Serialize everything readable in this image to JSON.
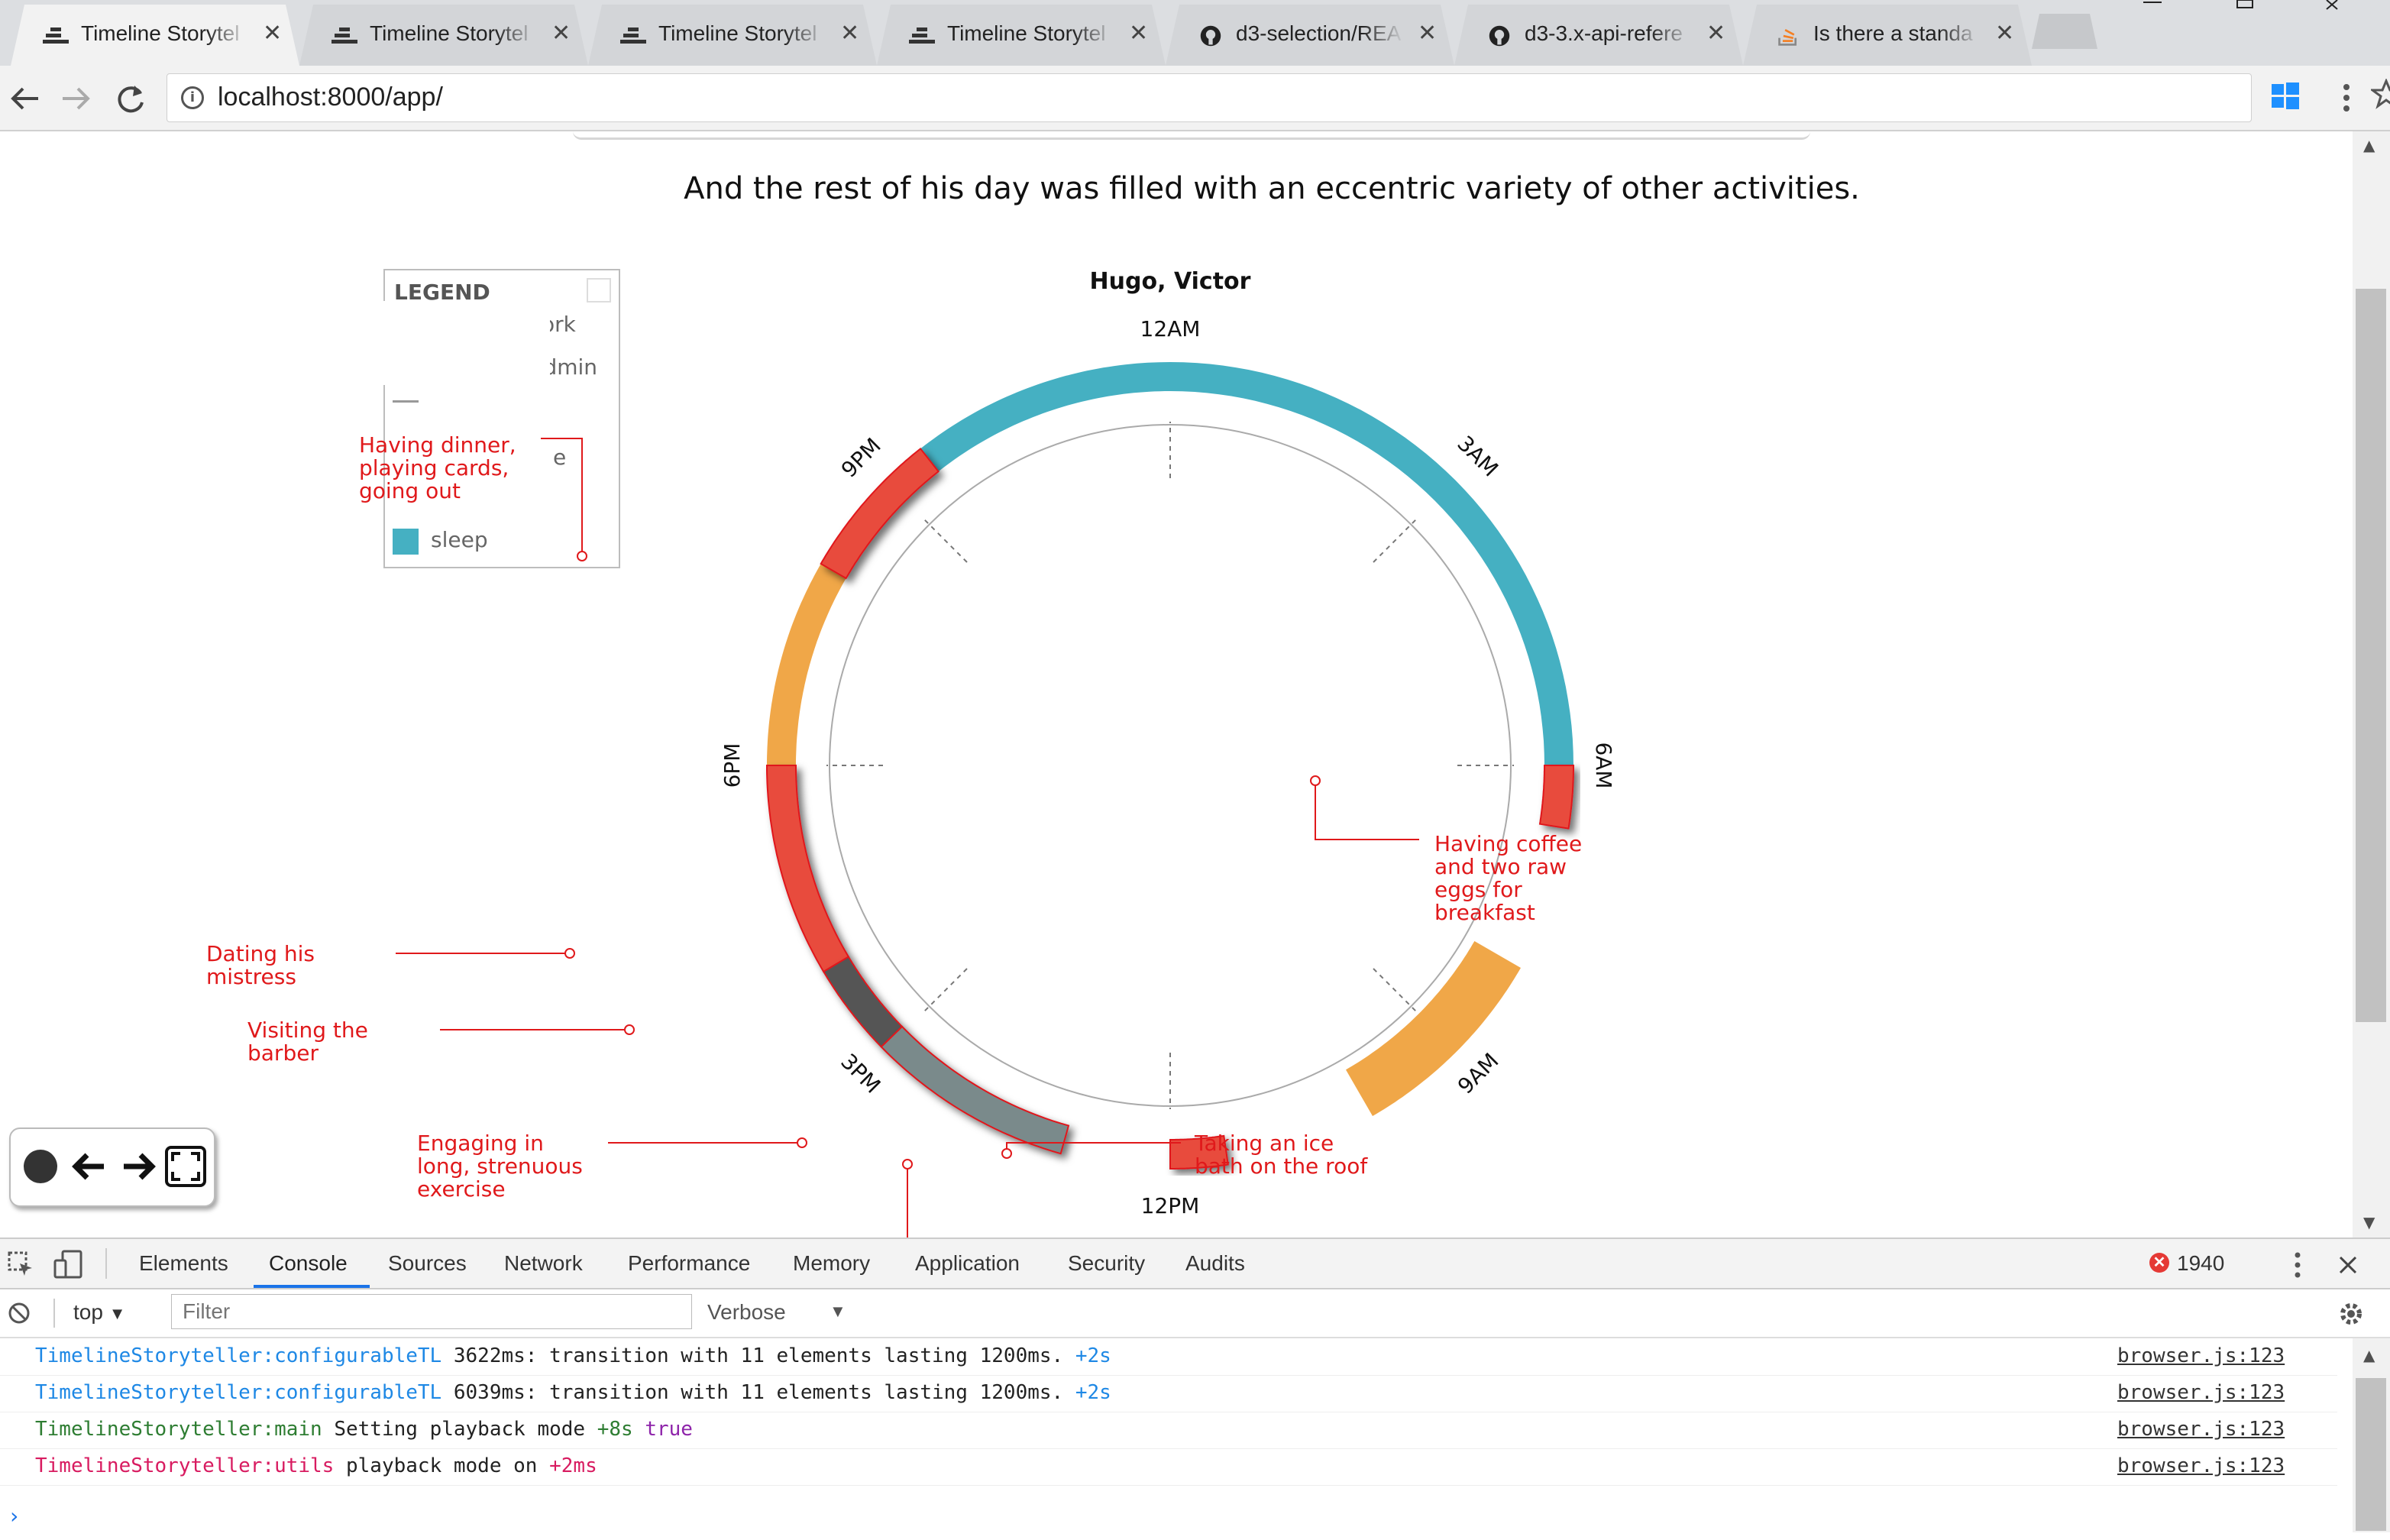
{
  "browser": {
    "tabs": [
      {
        "title": "Timeline Storytel",
        "icon": "timeline-storyteller-favicon",
        "active": true
      },
      {
        "title": "Timeline Storytel",
        "icon": "timeline-storyteller-favicon",
        "active": false
      },
      {
        "title": "Timeline Storytel",
        "icon": "timeline-storyteller-favicon",
        "active": false
      },
      {
        "title": "Timeline Storytel",
        "icon": "timeline-storyteller-favicon",
        "active": false
      },
      {
        "title": "d3-selection/REA",
        "icon": "github-icon",
        "active": false
      },
      {
        "title": "d3-3.x-api-refere",
        "icon": "github-icon",
        "active": false
      },
      {
        "title": "Is there a standa",
        "icon": "stackoverflow-icon",
        "active": false
      }
    ],
    "tab_close_glyph": "✕",
    "url": "localhost:8000/app/"
  },
  "page": {
    "caption": "And the rest of his day was filled with an eccentric variety of other activities.",
    "legend": {
      "title": "LEGEND",
      "items": [
        {
          "label": "creative work",
          "color": "#f0a748"
        },
        {
          "label": "day job / admin",
          "color": "#2ca02c"
        },
        {
          "label": "sleep",
          "color": "#45b0c2"
        }
      ],
      "partial_text": "e"
    },
    "chart_title": "Hugo, Victor",
    "clock_labels": {
      "top": "12AM",
      "right": "6AM",
      "bottom": "12PM",
      "left": "6PM",
      "upper_right": "3AM",
      "lower_right": "9AM",
      "lower_left": "3PM",
      "upper_left": "9PM"
    },
    "annotations": {
      "coffee": [
        "Having coffee",
        "and two raw",
        "eggs for",
        "breakfast"
      ],
      "ice_bath": [
        "Taking an ice",
        "bath on the roof"
      ],
      "exercise": [
        "Engaging in",
        "long, strenuous",
        "exercise"
      ],
      "barber": [
        "Visiting the",
        "barber"
      ],
      "mistress": [
        "Dating his",
        "mistress"
      ],
      "dinner": [
        "Having dinner,",
        "playing cards,",
        "going out"
      ]
    },
    "colors": {
      "sleep": "#45b0c2",
      "creative": "#f0a748",
      "highlight": "#e84c3d",
      "dark": "#555555",
      "gray": "#7a8a8b",
      "annotation": "#e0191b"
    }
  },
  "devtools": {
    "tabs": [
      "Elements",
      "Console",
      "Sources",
      "Network",
      "Performance",
      "Memory",
      "Application",
      "Security",
      "Audits"
    ],
    "active_tab": "Console",
    "error_count": "1940",
    "context": "top",
    "filter_placeholder": "Filter",
    "level": "Verbose",
    "logs": [
      {
        "ns": "TimelineStoryteller:configurableTL",
        "ns_color": "#1e88e5",
        "text": " 3622ms: transition with 11 elements lasting 1200ms. ",
        "delta": "+2s",
        "delta_color": "#1e88e5",
        "extra": "",
        "extra_color": "",
        "source": "browser.js:123"
      },
      {
        "ns": "TimelineStoryteller:configurableTL",
        "ns_color": "#1e88e5",
        "text": " 6039ms: transition with 11 elements lasting 1200ms. ",
        "delta": "+2s",
        "delta_color": "#1e88e5",
        "extra": "",
        "extra_color": "",
        "source": "browser.js:123"
      },
      {
        "ns": "TimelineStoryteller:main",
        "ns_color": "#2e7d32",
        "text": " Setting playback mode ",
        "delta": "+8s",
        "delta_color": "#2e7d32",
        "extra": " true",
        "extra_color": "#8e24aa",
        "source": "browser.js:123"
      },
      {
        "ns": "TimelineStoryteller:utils",
        "ns_color": "#d81b60",
        "text": " playback mode on ",
        "delta": "+2ms",
        "delta_color": "#d81b60",
        "extra": "",
        "extra_color": "",
        "source": "browser.js:123"
      }
    ]
  }
}
